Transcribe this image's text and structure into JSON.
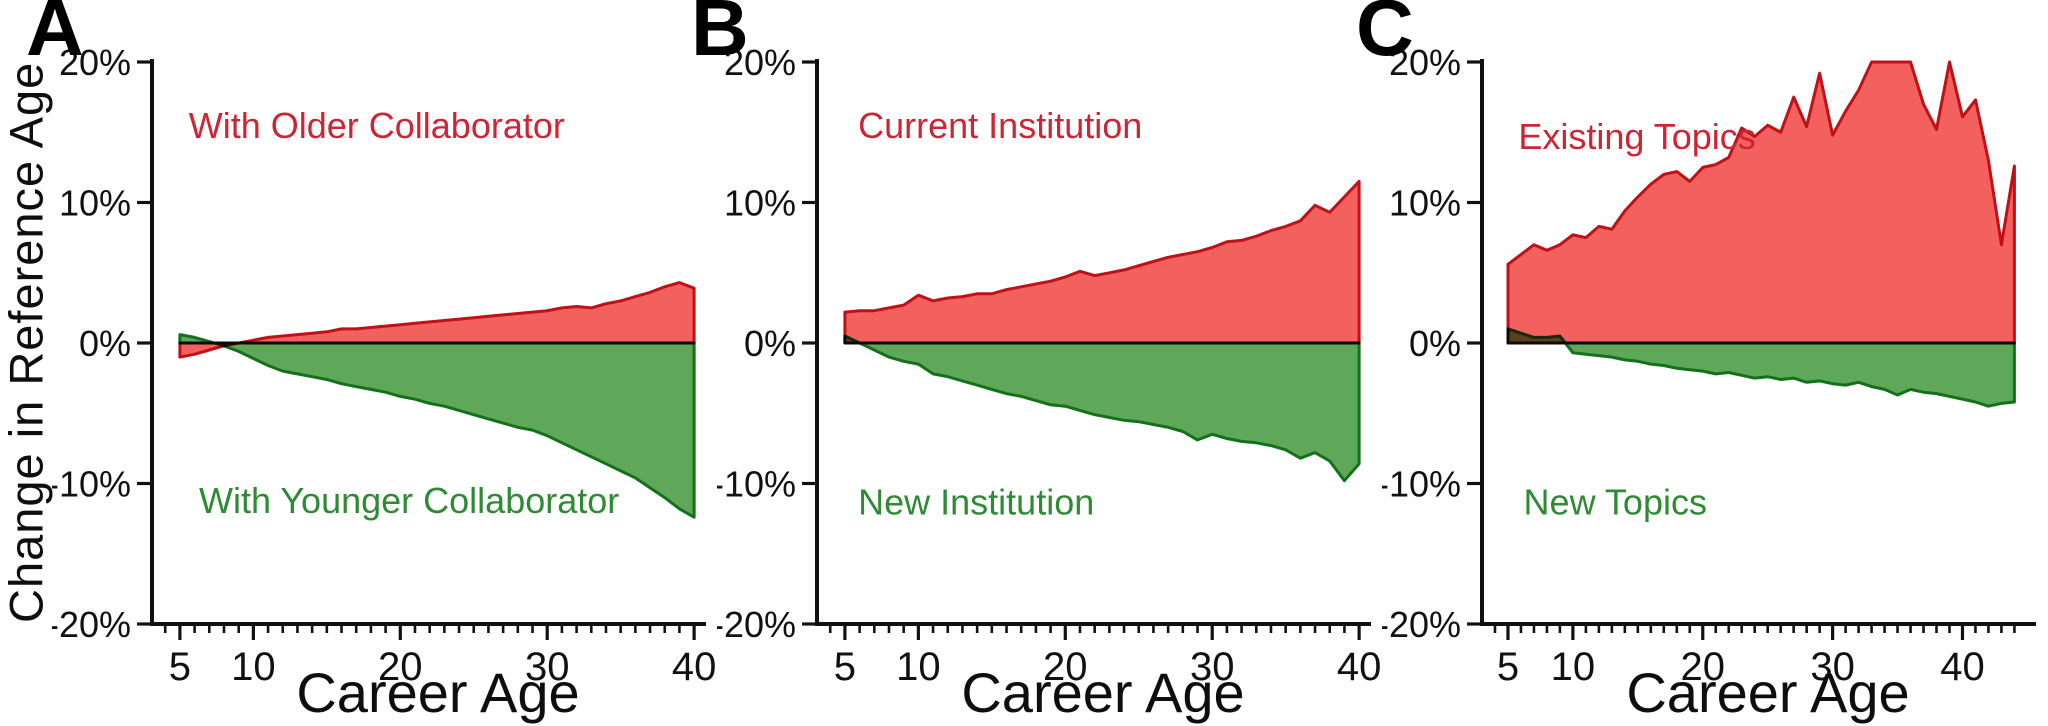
{
  "figure": {
    "y_axis_title": "Change in Reference Age",
    "x_axis_title": "Career Age",
    "y_ticks": [
      {
        "value": 20,
        "label": "20%"
      },
      {
        "value": 10,
        "label": "10%"
      },
      {
        "value": 0,
        "label": "0%"
      },
      {
        "value": -10,
        "label": "-10%"
      },
      {
        "value": -20,
        "label": "-20%"
      }
    ]
  },
  "colors": {
    "red_fill": "#F2615D",
    "red_stroke": "#C11117",
    "red_label": "#CE2433",
    "green_fill": "#5FA85A",
    "green_stroke": "#15701A",
    "green_label": "#2E8B33",
    "axis": "#111111"
  },
  "chart_data": [
    {
      "type": "area",
      "panel_label": "A",
      "xlabel": "Career Age",
      "xlim": [
        3.1,
        40.4
      ],
      "ylim": [
        -20,
        20
      ],
      "x_minor_from": 4,
      "x_minor_to": 40,
      "x_ticks": [
        {
          "value": 5,
          "label": "5"
        },
        {
          "value": 10,
          "label": "10"
        },
        {
          "value": 20,
          "label": "20"
        },
        {
          "value": 30,
          "label": "30"
        },
        {
          "value": 40,
          "label": "40"
        }
      ],
      "series": [
        {
          "name": "With Older Collaborator",
          "color_role": "red",
          "label_anchor": {
            "age": 5.6,
            "pct": 14.6
          },
          "ages": [
            5,
            6,
            7,
            8,
            9,
            10,
            11,
            12,
            13,
            14,
            15,
            16,
            17,
            18,
            19,
            20,
            21,
            22,
            23,
            24,
            25,
            26,
            27,
            28,
            29,
            30,
            31,
            32,
            33,
            34,
            35,
            36,
            37,
            38,
            39,
            40
          ],
          "values": [
            -1.0,
            -0.8,
            -0.5,
            -0.2,
            0.0,
            0.2,
            0.4,
            0.5,
            0.6,
            0.7,
            0.8,
            1.0,
            1.0,
            1.1,
            1.2,
            1.3,
            1.4,
            1.5,
            1.6,
            1.7,
            1.8,
            1.9,
            2.0,
            2.1,
            2.2,
            2.3,
            2.5,
            2.6,
            2.5,
            2.8,
            3.0,
            3.3,
            3.6,
            4.0,
            4.3,
            3.9
          ]
        },
        {
          "name": "With Younger Collaborator",
          "color_role": "green",
          "label_anchor": {
            "age": 6.3,
            "pct": -12.1
          },
          "ages": [
            5,
            6,
            7,
            8,
            9,
            10,
            11,
            12,
            13,
            14,
            15,
            16,
            17,
            18,
            19,
            20,
            21,
            22,
            23,
            24,
            25,
            26,
            27,
            28,
            29,
            30,
            31,
            32,
            33,
            34,
            35,
            36,
            37,
            38,
            39,
            40
          ],
          "values": [
            0.6,
            0.4,
            0.1,
            -0.2,
            -0.6,
            -1.1,
            -1.6,
            -2.0,
            -2.2,
            -2.4,
            -2.6,
            -2.9,
            -3.1,
            -3.3,
            -3.5,
            -3.8,
            -4.0,
            -4.3,
            -4.5,
            -4.8,
            -5.1,
            -5.4,
            -5.7,
            -6.0,
            -6.2,
            -6.6,
            -7.1,
            -7.6,
            -8.1,
            -8.6,
            -9.1,
            -9.6,
            -10.3,
            -11.0,
            -11.8,
            -12.4
          ]
        }
      ]
    },
    {
      "type": "area",
      "panel_label": "B",
      "xlabel": "Career Age",
      "xlim": [
        3.1,
        40.4
      ],
      "ylim": [
        -20,
        20
      ],
      "x_minor_from": 4,
      "x_minor_to": 40,
      "x_ticks": [
        {
          "value": 5,
          "label": "5"
        },
        {
          "value": 10,
          "label": "10"
        },
        {
          "value": 20,
          "label": "20"
        },
        {
          "value": 30,
          "label": "30"
        },
        {
          "value": 40,
          "label": "40"
        }
      ],
      "series": [
        {
          "name": "Current Institution",
          "color_role": "red",
          "label_anchor": {
            "age": 5.9,
            "pct": 14.6
          },
          "ages": [
            5,
            6,
            7,
            8,
            9,
            10,
            11,
            12,
            13,
            14,
            15,
            16,
            17,
            18,
            19,
            20,
            21,
            22,
            23,
            24,
            25,
            26,
            27,
            28,
            29,
            30,
            31,
            32,
            33,
            34,
            35,
            36,
            37,
            38,
            39,
            40
          ],
          "values": [
            2.2,
            2.3,
            2.3,
            2.5,
            2.7,
            3.4,
            3.0,
            3.2,
            3.3,
            3.5,
            3.5,
            3.8,
            4.0,
            4.2,
            4.4,
            4.7,
            5.1,
            4.8,
            5.0,
            5.2,
            5.5,
            5.8,
            6.1,
            6.3,
            6.5,
            6.8,
            7.2,
            7.3,
            7.6,
            8.0,
            8.3,
            8.7,
            9.8,
            9.3,
            10.4,
            11.5
          ]
        },
        {
          "name": "New Institution",
          "color_role": "green",
          "label_anchor": {
            "age": 5.9,
            "pct": -12.2
          },
          "ages": [
            5,
            6,
            7,
            8,
            9,
            10,
            11,
            12,
            13,
            14,
            15,
            16,
            17,
            18,
            19,
            20,
            21,
            22,
            23,
            24,
            25,
            26,
            27,
            28,
            29,
            30,
            31,
            32,
            33,
            34,
            35,
            36,
            37,
            38,
            39,
            40
          ],
          "values": [
            0.5,
            0.0,
            -0.5,
            -1.0,
            -1.3,
            -1.5,
            -2.2,
            -2.4,
            -2.7,
            -3.0,
            -3.3,
            -3.6,
            -3.8,
            -4.1,
            -4.4,
            -4.5,
            -4.8,
            -5.1,
            -5.3,
            -5.5,
            -5.6,
            -5.8,
            -6.0,
            -6.3,
            -6.9,
            -6.5,
            -6.8,
            -7.0,
            -7.1,
            -7.3,
            -7.6,
            -8.2,
            -7.8,
            -8.4,
            -9.8,
            -8.6
          ]
        }
      ]
    },
    {
      "type": "area",
      "panel_label": "C",
      "xlabel": "Career Age",
      "xlim": [
        3.0,
        45.2
      ],
      "ylim": [
        -20,
        20
      ],
      "x_minor_from": 4,
      "x_minor_to": 44,
      "x_ticks": [
        {
          "value": 5,
          "label": "5"
        },
        {
          "value": 10,
          "label": "10"
        },
        {
          "value": 20,
          "label": "20"
        },
        {
          "value": 30,
          "label": "30"
        },
        {
          "value": 40,
          "label": "40"
        }
      ],
      "series": [
        {
          "name": "Existing Topics",
          "color_role": "red",
          "label_anchor": {
            "age": 5.8,
            "pct": 13.8
          },
          "ages": [
            5,
            6,
            7,
            8,
            9,
            10,
            11,
            12,
            13,
            14,
            15,
            16,
            17,
            18,
            19,
            20,
            21,
            22,
            23,
            24,
            25,
            26,
            27,
            28,
            29,
            30,
            31,
            32,
            33,
            34,
            35,
            36,
            37,
            38,
            39,
            40,
            41,
            42,
            43,
            44
          ],
          "values": [
            5.6,
            6.3,
            7.0,
            6.6,
            7.0,
            7.7,
            7.5,
            8.3,
            8.1,
            9.4,
            10.4,
            11.3,
            12.0,
            12.2,
            11.5,
            12.5,
            12.7,
            13.2,
            15.3,
            14.7,
            15.5,
            15.0,
            17.5,
            15.4,
            19.2,
            14.8,
            16.5,
            18.0,
            20.0,
            20.0,
            20.0,
            20.0,
            17.0,
            15.2,
            20.0,
            16.1,
            17.3,
            13.0,
            7.0,
            12.6
          ]
        },
        {
          "name": "New Topics",
          "color_role": "green",
          "label_anchor": {
            "age": 6.2,
            "pct": -12.2
          },
          "ages": [
            5,
            6,
            7,
            8,
            9,
            10,
            11,
            12,
            13,
            14,
            15,
            16,
            17,
            18,
            19,
            20,
            21,
            22,
            23,
            24,
            25,
            26,
            27,
            28,
            29,
            30,
            31,
            32,
            33,
            34,
            35,
            36,
            37,
            38,
            39,
            40,
            41,
            42,
            43,
            44
          ],
          "values": [
            1.0,
            0.7,
            0.4,
            0.4,
            0.5,
            -0.7,
            -0.8,
            -0.9,
            -1.0,
            -1.2,
            -1.3,
            -1.5,
            -1.6,
            -1.8,
            -1.9,
            -2.0,
            -2.2,
            -2.1,
            -2.3,
            -2.5,
            -2.4,
            -2.6,
            -2.5,
            -2.8,
            -2.7,
            -2.9,
            -3.0,
            -2.8,
            -3.1,
            -3.3,
            -3.7,
            -3.3,
            -3.5,
            -3.6,
            -3.8,
            -4.0,
            -4.2,
            -4.5,
            -4.3,
            -4.2
          ]
        }
      ]
    }
  ]
}
